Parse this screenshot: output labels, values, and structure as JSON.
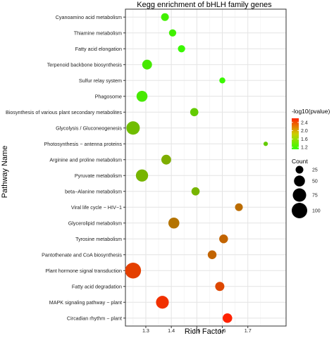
{
  "chart_data": {
    "type": "scatter",
    "title": "Kegg enrichment of bHLH family genes",
    "xlabel": "Rich Factor",
    "ylabel": "Pathway Name",
    "xlim": [
      1.22,
      1.85
    ],
    "xticks": [
      1.3,
      1.4,
      1.5,
      1.6,
      1.7
    ],
    "grid": true,
    "legend_placement": "right",
    "color_legend": {
      "title": "-log10(pvalue)",
      "ticks": [
        1.2,
        1.6,
        2.0,
        2.4
      ],
      "range": [
        1.1,
        2.6
      ],
      "low_color": "#33ff00",
      "high_color": "#ff2200"
    },
    "size_legend": {
      "title": "Count",
      "values": [
        25,
        50,
        75,
        100
      ]
    },
    "categories": [
      "Cyanoamino acid metabolism",
      "Thiamine metabolism",
      "Fatty acid elongation",
      "Terpenoid backbone biosynthesis",
      "Sulfur relay system",
      "Phagosome",
      "Biosynthesis of various plant secondary metabolites",
      "Glycolysis / Gluconeogenesis",
      "Photosynthesis − antenna proteins",
      "Arginine and proline metabolism",
      "Pyruvate metabolism",
      "beta−Alanine metabolism",
      "Viral life cycle − HIV−1",
      "Glycerolipid metabolism",
      "Tyrosine metabolism",
      "Pantothenate and CoA biosynthesis",
      "Plant hormone signal transduction",
      "Fatty acid degradation",
      "MAPK signaling pathway − plant",
      "Circadian rhythm − plant"
    ],
    "points": [
      {
        "y": "Cyanoamino acid metabolism",
        "x": 1.375,
        "pvalue_log10": 1.2,
        "count": 25
      },
      {
        "y": "Thiamine metabolism",
        "x": 1.405,
        "pvalue_log10": 1.2,
        "count": 22
      },
      {
        "y": "Fatty acid elongation",
        "x": 1.44,
        "pvalue_log10": 1.15,
        "count": 22
      },
      {
        "y": "Terpenoid backbone biosynthesis",
        "x": 1.305,
        "pvalue_log10": 1.25,
        "count": 40
      },
      {
        "y": "Sulfur relay system",
        "x": 1.6,
        "pvalue_log10": 1.15,
        "count": 15
      },
      {
        "y": "Phagosome",
        "x": 1.285,
        "pvalue_log10": 1.25,
        "count": 50
      },
      {
        "y": "Biosynthesis of various plant secondary metabolites",
        "x": 1.49,
        "pvalue_log10": 1.45,
        "count": 28
      },
      {
        "y": "Glycolysis / Gluconeogenesis",
        "x": 1.25,
        "pvalue_log10": 1.55,
        "count": 75
      },
      {
        "y": "Photosynthesis − antenna proteins",
        "x": 1.77,
        "pvalue_log10": 1.45,
        "count": 8
      },
      {
        "y": "Arginine and proline metabolism",
        "x": 1.38,
        "pvalue_log10": 1.65,
        "count": 40
      },
      {
        "y": "Pyruvate metabolism",
        "x": 1.285,
        "pvalue_log10": 1.6,
        "count": 62
      },
      {
        "y": "beta−Alanine metabolism",
        "x": 1.495,
        "pvalue_log10": 1.6,
        "count": 28
      },
      {
        "y": "Viral life cycle − HIV−1",
        "x": 1.665,
        "pvalue_log10": 2.1,
        "count": 25
      },
      {
        "y": "Glycerolipid metabolism",
        "x": 1.41,
        "pvalue_log10": 2.05,
        "count": 50
      },
      {
        "y": "Tyrosine metabolism",
        "x": 1.605,
        "pvalue_log10": 2.15,
        "count": 32
      },
      {
        "y": "Pantothenate and CoA biosynthesis",
        "x": 1.56,
        "pvalue_log10": 2.15,
        "count": 32
      },
      {
        "y": "Plant hormone signal transduction",
        "x": 1.25,
        "pvalue_log10": 2.4,
        "count": 105
      },
      {
        "y": "Fatty acid degradation",
        "x": 1.59,
        "pvalue_log10": 2.35,
        "count": 35
      },
      {
        "y": "MAPK signaling pathway − plant",
        "x": 1.365,
        "pvalue_log10": 2.5,
        "count": 68
      },
      {
        "y": "Circadian rhythm − plant",
        "x": 1.62,
        "pvalue_log10": 2.6,
        "count": 38
      }
    ]
  }
}
